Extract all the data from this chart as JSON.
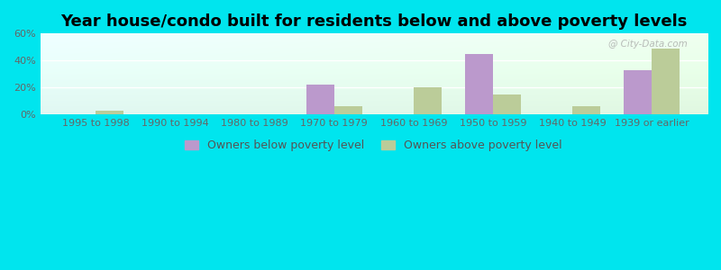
{
  "title": "Year house/condo built for residents below and above poverty levels",
  "categories": [
    "1995 to 1998",
    "1990 to 1994",
    "1980 to 1989",
    "1970 to 1979",
    "1960 to 1969",
    "1950 to 1959",
    "1940 to 1949",
    "1939 or earlier"
  ],
  "below_poverty": [
    0,
    0,
    0,
    22,
    0,
    45,
    0,
    33
  ],
  "above_poverty": [
    3,
    0,
    0,
    6,
    20,
    15,
    6,
    49
  ],
  "below_color": "#bb99cc",
  "above_color": "#bbcc99",
  "ylim": [
    0,
    60
  ],
  "yticks": [
    0,
    20,
    40,
    60
  ],
  "ytick_labels": [
    "0%",
    "20%",
    "40%",
    "60%"
  ],
  "legend_below": "Owners below poverty level",
  "legend_above": "Owners above poverty level",
  "outer_bg": "#00e5ee",
  "bar_width": 0.35,
  "title_fontsize": 13,
  "tick_fontsize": 8.0,
  "legend_fontsize": 9
}
